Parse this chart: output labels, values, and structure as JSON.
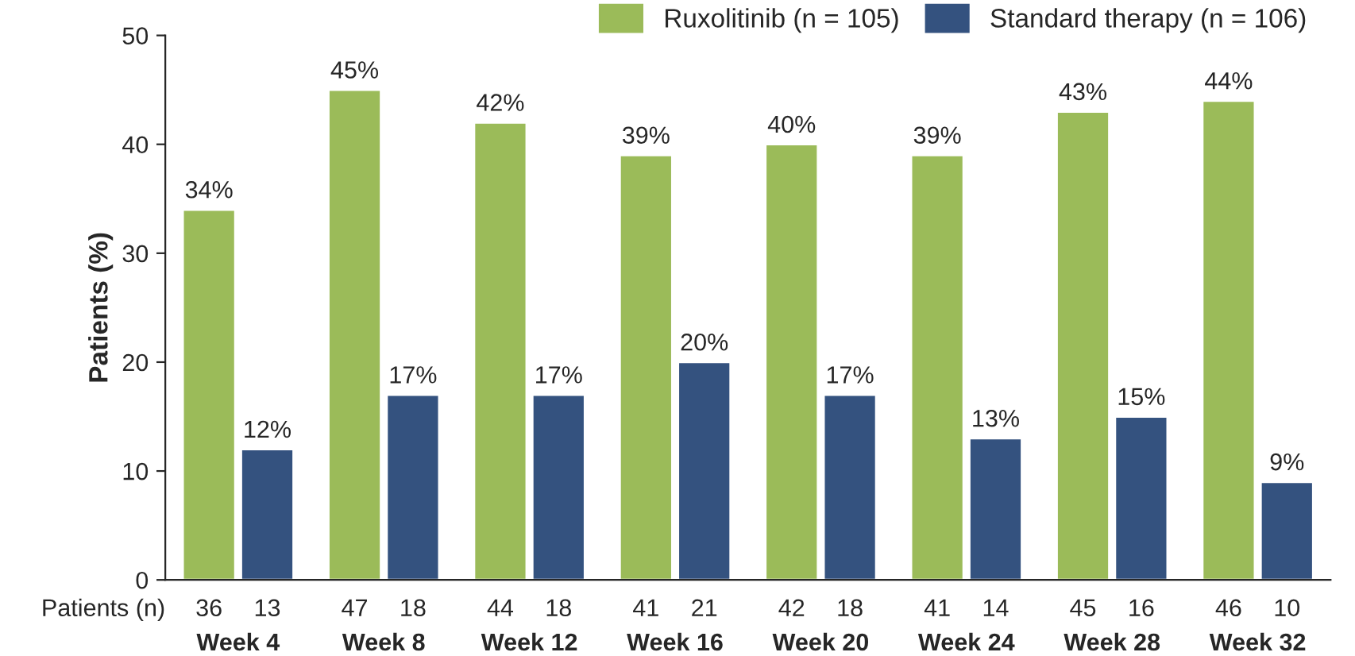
{
  "chart_data": {
    "type": "bar",
    "ylabel": "Patients (%)",
    "categories": [
      "Week 4",
      "Week 8",
      "Week 12",
      "Week 16",
      "Week 20",
      "Week 24",
      "Week 28",
      "Week 32"
    ],
    "series": [
      {
        "name": "Ruxolitinib (n = 105)",
        "color": "#9bbb59",
        "values": [
          34,
          45,
          42,
          39,
          40,
          39,
          43,
          44
        ],
        "value_labels": [
          "34%",
          "45%",
          "42%",
          "39%",
          "40%",
          "39%",
          "43%",
          "44%"
        ]
      },
      {
        "name": "Standard therapy (n = 106)",
        "color": "#34527f",
        "values": [
          12,
          17,
          17,
          20,
          17,
          13,
          15,
          9
        ],
        "value_labels": [
          "12%",
          "17%",
          "17%",
          "20%",
          "17%",
          "13%",
          "15%",
          "9%"
        ]
      }
    ],
    "annotations": [
      "Patients (n)",
      "36",
      "13",
      "47",
      "18",
      "44",
      "18",
      "41",
      "21",
      "42",
      "18",
      "41",
      "14",
      "45",
      "16",
      "46",
      "10"
    ],
    "ylim": [
      0,
      50
    ],
    "yticks": [
      0,
      10,
      20,
      30,
      40,
      50
    ],
    "grid": false,
    "legend": "top right"
  }
}
